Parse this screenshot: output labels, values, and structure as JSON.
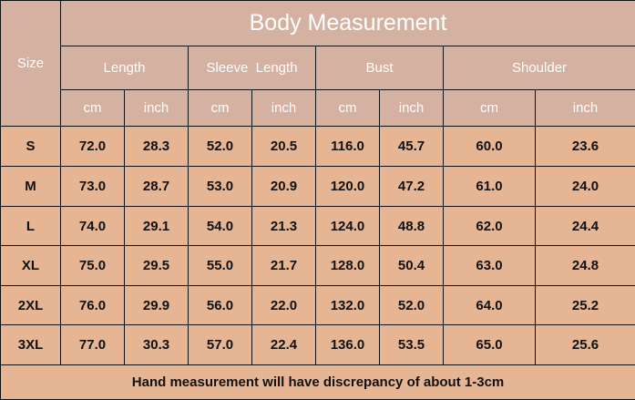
{
  "title": "Body Measurement",
  "size_label": "Size",
  "groups": [
    "Length",
    "Sleeve  Length",
    "Bust",
    "Shoulder"
  ],
  "units": [
    "cm",
    "inch",
    "cm",
    "inch",
    "cm",
    "inch",
    "cm",
    "inch"
  ],
  "rows": [
    [
      "S",
      "72.0",
      "28.3",
      "52.0",
      "20.5",
      "116.0",
      "45.7",
      "60.0",
      "23.6"
    ],
    [
      "M",
      "73.0",
      "28.7",
      "53.0",
      "20.9",
      "120.0",
      "47.2",
      "61.0",
      "24.0"
    ],
    [
      "L",
      "74.0",
      "29.1",
      "54.0",
      "21.3",
      "124.0",
      "48.8",
      "62.0",
      "24.4"
    ],
    [
      "XL",
      "75.0",
      "29.5",
      "55.0",
      "21.7",
      "128.0",
      "50.4",
      "63.0",
      "24.8"
    ],
    [
      "2XL",
      "76.0",
      "29.9",
      "56.0",
      "22.0",
      "132.0",
      "52.0",
      "64.0",
      "25.2"
    ],
    [
      "3XL",
      "77.0",
      "30.3",
      "57.0",
      "22.4",
      "136.0",
      "53.5",
      "65.0",
      "25.6"
    ]
  ],
  "note": "Hand measurement will have discrepancy of about 1-3cm",
  "colors": {
    "header": "#d4b1a0",
    "body": "#e6b694"
  }
}
